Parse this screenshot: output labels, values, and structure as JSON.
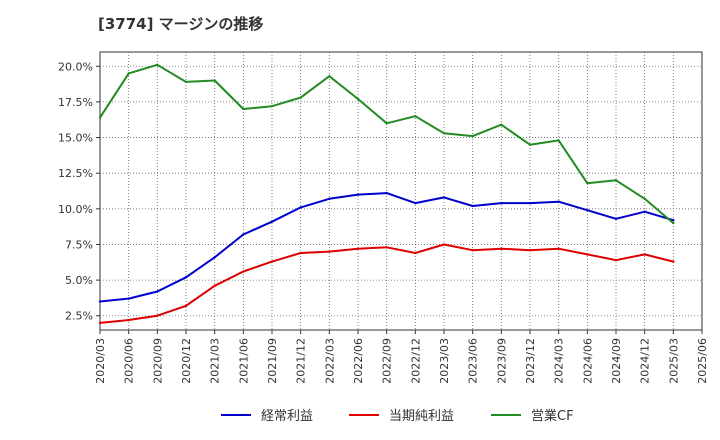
{
  "chart_data": {
    "type": "line",
    "title": "[3774]  マージンの推移",
    "x": [
      "2020/03",
      "2020/06",
      "2020/09",
      "2020/12",
      "2021/03",
      "2021/06",
      "2021/09",
      "2021/12",
      "2022/03",
      "2022/06",
      "2022/09",
      "2022/12",
      "2023/03",
      "2023/06",
      "2023/09",
      "2023/12",
      "2024/03",
      "2024/06",
      "2024/09",
      "2024/12",
      "2025/03",
      "2025/06"
    ],
    "y_ticks": [
      "2.5%",
      "5.0%",
      "7.5%",
      "10.0%",
      "12.5%",
      "15.0%",
      "17.5%",
      "20.0%"
    ],
    "y_tick_values": [
      2.5,
      5.0,
      7.5,
      10.0,
      12.5,
      15.0,
      17.5,
      20.0
    ],
    "ylim": [
      1.5,
      21.0
    ],
    "grid": true,
    "legend_position": "bottom",
    "series": [
      {
        "name": "経常利益",
        "color": "#0000cc",
        "values": [
          3.5,
          3.7,
          4.2,
          5.2,
          6.6,
          8.2,
          9.1,
          10.1,
          10.7,
          11.0,
          11.1,
          10.4,
          10.8,
          10.2,
          10.4,
          10.4,
          10.5,
          9.9,
          9.3,
          9.8,
          9.2,
          null
        ]
      },
      {
        "name": "当期純利益",
        "color": "#dd0000",
        "values": [
          2.0,
          2.2,
          2.5,
          3.2,
          4.6,
          5.6,
          6.3,
          6.9,
          7.0,
          7.2,
          7.3,
          6.9,
          7.5,
          7.1,
          7.2,
          7.1,
          7.2,
          6.8,
          6.4,
          6.8,
          6.3,
          null
        ]
      },
      {
        "name": "営業CF",
        "color": "#228b22",
        "values": [
          16.4,
          19.5,
          20.1,
          18.9,
          19.0,
          17.0,
          17.2,
          17.8,
          19.3,
          17.7,
          16.0,
          16.5,
          15.3,
          15.1,
          15.9,
          14.5,
          14.8,
          11.8,
          12.0,
          10.7,
          9.0,
          null
        ]
      }
    ]
  }
}
